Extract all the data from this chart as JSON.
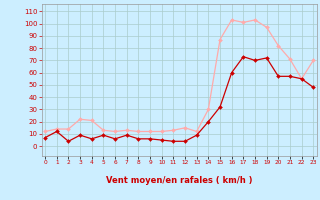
{
  "x": [
    0,
    1,
    2,
    3,
    4,
    5,
    6,
    7,
    8,
    9,
    10,
    11,
    12,
    13,
    14,
    15,
    16,
    17,
    18,
    19,
    20,
    21,
    22,
    23
  ],
  "wind_avg": [
    7,
    12,
    4,
    9,
    6,
    9,
    6,
    9,
    6,
    6,
    5,
    4,
    4,
    9,
    20,
    32,
    60,
    73,
    70,
    72,
    57,
    57,
    55,
    48
  ],
  "wind_gust": [
    12,
    14,
    14,
    22,
    21,
    13,
    12,
    13,
    12,
    12,
    12,
    13,
    15,
    12,
    30,
    87,
    103,
    101,
    103,
    97,
    82,
    71,
    55,
    70
  ],
  "avg_color": "#cc0000",
  "gust_color": "#ffaaaa",
  "bg_color": "#cceeff",
  "grid_color": "#aacccc",
  "xlabel": "Vent moyen/en rafales ( km/h )",
  "yticks": [
    0,
    10,
    20,
    30,
    40,
    50,
    60,
    70,
    80,
    90,
    100,
    110
  ],
  "ylim": [
    -8,
    116
  ],
  "xlim": [
    -0.3,
    23.3
  ]
}
